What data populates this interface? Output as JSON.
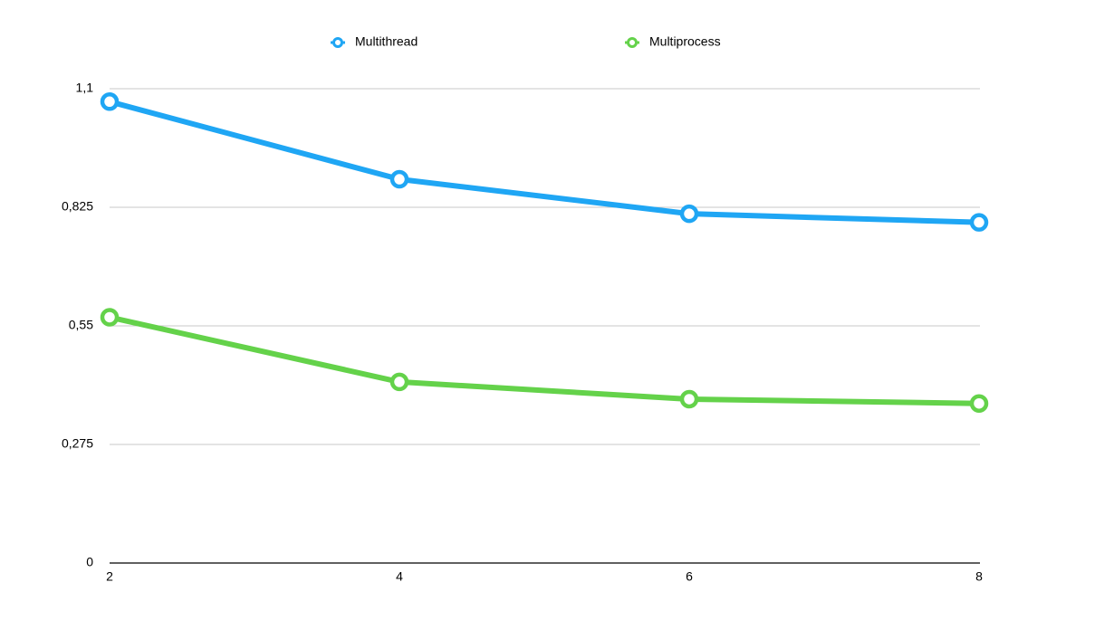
{
  "chart_data": {
    "type": "line",
    "x": [
      2,
      4,
      6,
      8
    ],
    "series": [
      {
        "name": "Multithread",
        "color": "#1fa6f4",
        "values": [
          1.07,
          0.89,
          0.81,
          0.79
        ]
      },
      {
        "name": "Multiprocess",
        "color": "#64d24a",
        "values": [
          0.57,
          0.42,
          0.38,
          0.37
        ]
      }
    ],
    "xlim": [
      2,
      8
    ],
    "xticks": [
      2,
      4,
      6,
      8
    ],
    "ylim": [
      0,
      1.1
    ],
    "yticks": [
      0,
      {
        "value": 0.275,
        "label": "0,275"
      },
      {
        "value": 0.55,
        "label": "0,55"
      },
      {
        "value": 0.825,
        "label": "0,825"
      },
      {
        "value": 1.1,
        "label": "1,1"
      }
    ],
    "grid": true,
    "legend": "top"
  }
}
